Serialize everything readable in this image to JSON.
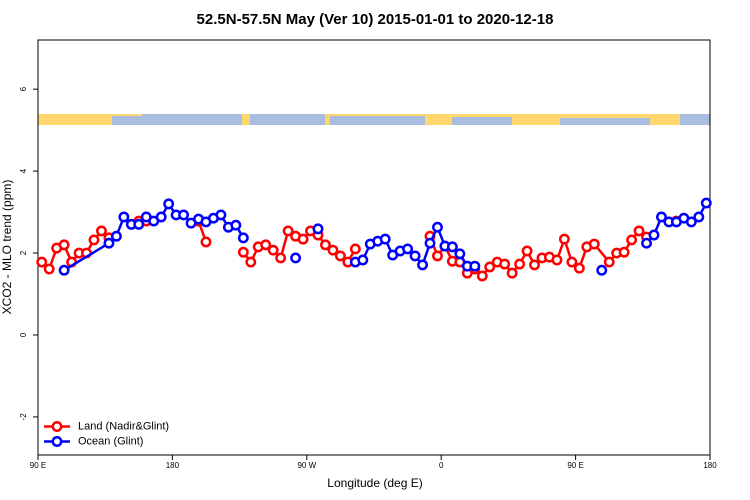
{
  "chart_data": {
    "type": "line",
    "title": "52.5N-57.5N May (Ver 10)   2015-01-01 to 2020-12-18",
    "x_label": "Longitude (deg E)",
    "y_label": "XCO2 - MLO trend (ppm)",
    "xlim": [
      90,
      540
    ],
    "ylim": [
      -2.93,
      7.2
    ],
    "xticks": [
      {
        "value": 90,
        "label": "90 E"
      },
      {
        "value": 180,
        "label": "180"
      },
      {
        "value": 270,
        "label": "90 W"
      },
      {
        "value": 360,
        "label": "0"
      },
      {
        "value": 450,
        "label": "90 E"
      },
      {
        "value": 540,
        "label": "180"
      }
    ],
    "yticks": [
      -2,
      0,
      2,
      4,
      6
    ],
    "legend": "bottomleft",
    "series": [
      {
        "name": "Land (Nadir&Glint)",
        "color": "#ff0000",
        "x": [
          92.5,
          97.5,
          102.5,
          107.5,
          112.5,
          117.5,
          122.5,
          127.5,
          132.5,
          137.5,
          null,
          157.5,
          162.5,
          null,
          197.5,
          202.5,
          null,
          227.5,
          232.5,
          237.5,
          242.5,
          247.5,
          252.5,
          257.5,
          262.5,
          267.5,
          272.5,
          277.5,
          282.5,
          287.5,
          292.5,
          297.5,
          302.5,
          null,
          352.5,
          357.5,
          362.5,
          367.5,
          372.5,
          377.5,
          382.5,
          387.5,
          392.5,
          397.5,
          402.5,
          407.5,
          412.5,
          417.5,
          422.5,
          427.5,
          432.5,
          437.5,
          442.5,
          447.5,
          452.5,
          457.5,
          462.5,
          472.5,
          477.5,
          482.5,
          487.5,
          492.5,
          497.5,
          null,
          517.5
        ],
        "values": [
          1.78,
          1.61,
          2.12,
          2.2,
          1.78,
          2.0,
          2.0,
          2.32,
          2.54,
          2.37,
          null,
          2.78,
          2.78,
          null,
          2.78,
          2.27,
          null,
          2.02,
          1.78,
          2.15,
          2.2,
          2.07,
          1.88,
          2.54,
          2.41,
          2.34,
          2.54,
          2.44,
          2.2,
          2.07,
          1.93,
          1.78,
          2.1,
          null,
          2.41,
          1.93,
          2.17,
          1.8,
          1.78,
          1.51,
          1.61,
          1.44,
          1.66,
          1.78,
          1.73,
          1.51,
          1.73,
          2.05,
          1.71,
          1.88,
          1.9,
          1.83,
          2.34,
          1.78,
          1.63,
          2.15,
          2.22,
          1.78,
          2.0,
          2.02,
          2.32,
          2.54,
          2.39,
          null,
          2.78
        ]
      },
      {
        "name": "Ocean (Glint)",
        "color": "#0000ff",
        "x": [
          107.5,
          137.5,
          142.5,
          147.5,
          152.5,
          157.5,
          162.5,
          167.5,
          172.5,
          177.5,
          182.5,
          187.5,
          192.5,
          197.5,
          202.5,
          207.5,
          212.5,
          217.5,
          222.5,
          227.5,
          null,
          262.5,
          null,
          277.5,
          null,
          302.5,
          307.5,
          312.5,
          317.5,
          322.5,
          327.5,
          332.5,
          337.5,
          342.5,
          347.5,
          352.5,
          357.5,
          362.5,
          367.5,
          372.5,
          377.5,
          382.5,
          null,
          467.5,
          null,
          497.5,
          502.5,
          507.5,
          512.5,
          517.5,
          522.5,
          527.5,
          532.5,
          537.5
        ],
        "values": [
          1.58,
          2.24,
          2.41,
          2.88,
          2.7,
          2.7,
          2.88,
          2.78,
          2.88,
          3.2,
          2.93,
          2.93,
          2.73,
          2.83,
          2.76,
          2.85,
          2.93,
          2.63,
          2.68,
          2.37,
          null,
          1.88,
          null,
          2.59,
          null,
          1.78,
          1.83,
          2.22,
          2.29,
          2.34,
          1.95,
          2.05,
          2.1,
          1.93,
          1.71,
          2.24,
          2.63,
          2.17,
          2.15,
          1.98,
          1.68,
          1.68,
          null,
          1.58,
          null,
          2.24,
          2.44,
          2.88,
          2.76,
          2.76,
          2.85,
          2.76,
          2.88,
          3.22
        ]
      }
    ]
  }
}
